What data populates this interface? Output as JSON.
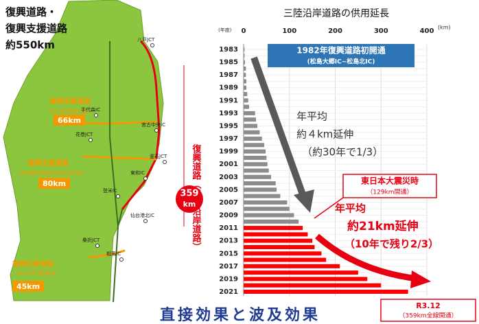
{
  "map": {
    "title_lines": [
      "復興道路・",
      "復興支援道路",
      "約550km"
    ],
    "route1": {
      "name": "復興支援道路",
      "sub": "（宮古盛岡横断道路）",
      "length": "66km"
    },
    "route2": {
      "name": "復興支援道路",
      "sub": "（東北横断自動車道釜石秋田線）",
      "length": "80km"
    },
    "route3": {
      "name": "復興支援道路",
      "sub": "（東北中央自動車道）",
      "length": "45km"
    },
    "main_route": "復興道路（三陸沿岸道路）",
    "main_length": [
      "359",
      "km"
    ],
    "places": [
      "八戸JCT",
      "手代森IC",
      "宮古中央IC",
      "花巻JCT",
      "釜石JCT",
      "東和IC",
      "登米IC",
      "仙台港北IC",
      "桑折JCT",
      "相馬IC"
    ]
  },
  "chart_data": {
    "type": "bar",
    "orientation": "horizontal",
    "title": "三陸沿岸道路の供用延長",
    "y_label": "(年度)",
    "x_label": "(km)",
    "categories": [
      "1983",
      null,
      "1985",
      null,
      "1987",
      null,
      "1989",
      null,
      "1991",
      null,
      "1993",
      null,
      "1995",
      null,
      "1997",
      null,
      "1999",
      null,
      "2001",
      null,
      "2003",
      null,
      "2005",
      null,
      "2007",
      null,
      "2009",
      null,
      "2011",
      null,
      "2013",
      null,
      "2015",
      null,
      "2017",
      null,
      "2019",
      null,
      "2021"
    ],
    "values": [
      2,
      2,
      3,
      5,
      5,
      6,
      6,
      8,
      10,
      12,
      25,
      27,
      30,
      35,
      40,
      45,
      48,
      50,
      52,
      55,
      60,
      70,
      72,
      80,
      95,
      100,
      110,
      120,
      129,
      140,
      150,
      155,
      170,
      180,
      210,
      250,
      270,
      300,
      359
    ],
    "colors": [
      "#8c8c8c",
      "#8c8c8c",
      "#8c8c8c",
      "#8c8c8c",
      "#8c8c8c",
      "#8c8c8c",
      "#8c8c8c",
      "#8c8c8c",
      "#8c8c8c",
      "#8c8c8c",
      "#8c8c8c",
      "#8c8c8c",
      "#8c8c8c",
      "#8c8c8c",
      "#8c8c8c",
      "#8c8c8c",
      "#8c8c8c",
      "#8c8c8c",
      "#8c8c8c",
      "#8c8c8c",
      "#8c8c8c",
      "#8c8c8c",
      "#8c8c8c",
      "#8c8c8c",
      "#8c8c8c",
      "#8c8c8c",
      "#8c8c8c",
      "#8c8c8c",
      "#ff0000",
      "#ff0000",
      "#ff0000",
      "#ff0000",
      "#ff0000",
      "#ff0000",
      "#ff0000",
      "#ff0000",
      "#ff0000",
      "#ff0000",
      "#ff0000"
    ],
    "xlim": [
      0,
      400
    ],
    "xticks": [
      0,
      100,
      200,
      300,
      400
    ],
    "grid": true,
    "annotations": [
      "1982年復興道路初開通",
      "(松島大郷IC~松島北IC)",
      "年平均",
      "約４km延伸",
      "（約30年で1/3）",
      "東日本大震災時",
      "（129km開通）",
      "年平均",
      "約21km延伸",
      "（10年で残り2/3）",
      "R3.12",
      "（359km全線開通）"
    ]
  },
  "footer": "直接効果と波及効果"
}
